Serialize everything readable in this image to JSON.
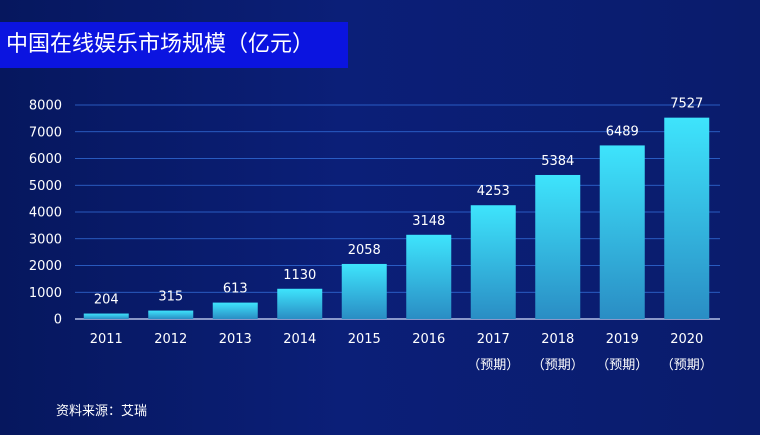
{
  "header": {
    "title": "中国在线娱乐市场规模（亿元）"
  },
  "footer": {
    "source": "资料来源：艾瑞"
  },
  "colors": {
    "bar_top": "#3ee4fc",
    "bar_bottom": "#2a8dc4",
    "grid": "#3c7ff0",
    "title_bg": "#0b14e0"
  },
  "chart_data": {
    "type": "bar",
    "title": "中国在线娱乐市场规模（亿元）",
    "categories": [
      "2011",
      "2012",
      "2013",
      "2014",
      "2015",
      "2016",
      "2017",
      "2018",
      "2019",
      "2020"
    ],
    "category_sublabels": [
      "",
      "",
      "",
      "",
      "",
      "",
      "（预期）",
      "（预期）",
      "（预期）",
      "（预期）"
    ],
    "values": [
      204,
      315,
      613,
      1130,
      2058,
      3148,
      4253,
      5384,
      6489,
      7527
    ],
    "ylim": [
      0,
      8000
    ],
    "yticks": [
      0,
      1000,
      2000,
      3000,
      4000,
      5000,
      6000,
      7000,
      8000
    ],
    "grid": true,
    "xlabel": "",
    "ylabel": "",
    "data_labels": true
  }
}
